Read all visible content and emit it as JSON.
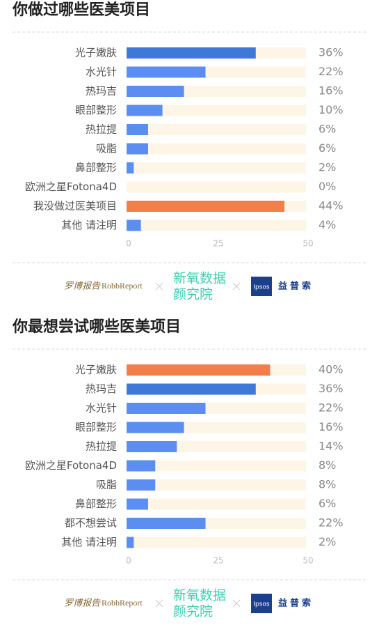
{
  "chart_data": [
    {
      "type": "barh",
      "title": "你做过哪些医美项目",
      "categories": [
        "光子嫩肤",
        "水光针",
        "热玛吉",
        "眼部整形",
        "热拉提",
        "吸脂",
        "鼻部整形",
        "欧洲之星Fotona4D",
        "我没做过医美项目",
        "其他 请注明"
      ],
      "values": [
        36,
        22,
        16,
        10,
        6,
        6,
        2,
        0,
        44,
        4
      ],
      "value_labels": [
        "36%",
        "22%",
        "16%",
        "10%",
        "6%",
        "6%",
        "2%",
        "0%",
        "44%",
        "4%"
      ],
      "colors": [
        "#3e78d8",
        "#5b8ef0",
        "#5b8ef0",
        "#5b8ef0",
        "#5b8ef0",
        "#5b8ef0",
        "#5b8ef0",
        "#5b8ef0",
        "#f47e4a",
        "#5b8ef0"
      ],
      "track_color": "#fdf5e6",
      "xlim": [
        0,
        50
      ],
      "xticks": [
        0,
        25,
        50
      ]
    },
    {
      "type": "barh",
      "title": "你最想尝试哪些医美项目",
      "categories": [
        "光子嫩肤",
        "热玛吉",
        "水光针",
        "眼部整形",
        "热拉提",
        "欧洲之星Fotona4D",
        "吸脂",
        "鼻部整形",
        "都不想尝试",
        "其他 请注明"
      ],
      "values": [
        40,
        36,
        22,
        16,
        14,
        8,
        8,
        6,
        22,
        2
      ],
      "value_labels": [
        "40%",
        "36%",
        "22%",
        "16%",
        "14%",
        "8%",
        "8%",
        "6%",
        "22%",
        "2%"
      ],
      "colors": [
        "#f47e4a",
        "#3e78d8",
        "#5b8ef0",
        "#5b8ef0",
        "#5b8ef0",
        "#5b8ef0",
        "#5b8ef0",
        "#5b8ef0",
        "#5b8ef0",
        "#5b8ef0"
      ],
      "track_color": "#fdf5e6",
      "xlim": [
        0,
        50
      ],
      "xticks": [
        0,
        25,
        50
      ]
    }
  ],
  "logos": {
    "robb_cn": "罗博报告",
    "robb_en": "RobbReport",
    "soyoung_1": "新氧数据",
    "soyoung_2": "颜究院",
    "ipsos": "Ipsos",
    "ipsos_cn": "益普索"
  }
}
